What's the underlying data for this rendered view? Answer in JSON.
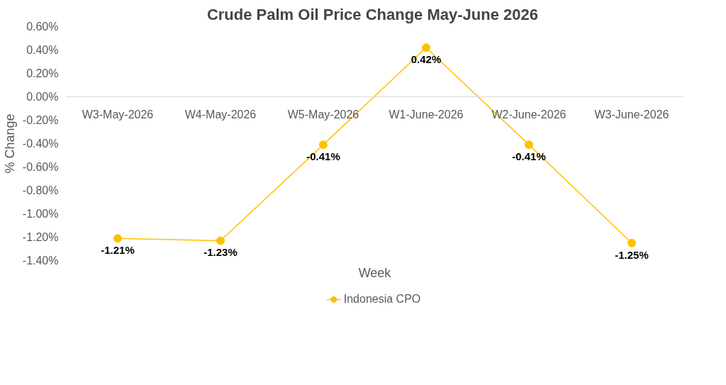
{
  "chart_data": {
    "type": "line",
    "title": "Crude Palm Oil  Price Change May-June 2026",
    "xlabel": "Week",
    "ylabel": "% Change",
    "categories": [
      "W3-May-2026",
      "W4-May-2026",
      "W5-May-2026",
      "W1-June-2026",
      "W2-June-2026",
      "W3-June-2026"
    ],
    "series": [
      {
        "name": "Indonesia CPO",
        "color": "#ffc000",
        "values": [
          -1.21,
          -1.23,
          -0.41,
          0.42,
          -0.41,
          -1.25
        ]
      }
    ],
    "value_labels": [
      "-1.21%",
      "-1.23%",
      "-0.41%",
      "0.42%",
      "-0.41%",
      "-1.25%"
    ],
    "ylim": [
      -1.4,
      0.6
    ],
    "yticks": [
      {
        "value": -1.4,
        "label": "-1.40%"
      },
      {
        "value": -1.2,
        "label": "-1.20%"
      },
      {
        "value": -1.0,
        "label": "-1.00%"
      },
      {
        "value": -0.8,
        "label": "-0.80%"
      },
      {
        "value": -0.6,
        "label": "-0.60%"
      },
      {
        "value": -0.4,
        "label": "-0.40%"
      },
      {
        "value": -0.2,
        "label": "-0.20%"
      },
      {
        "value": 0.0,
        "label": "0.00%"
      },
      {
        "value": 0.2,
        "label": "0.20%"
      },
      {
        "value": 0.4,
        "label": "0.40%"
      },
      {
        "value": 0.6,
        "label": "0.60%"
      }
    ],
    "grid": false,
    "legend": "bottom",
    "marker": "circle",
    "line_style": "solid"
  }
}
